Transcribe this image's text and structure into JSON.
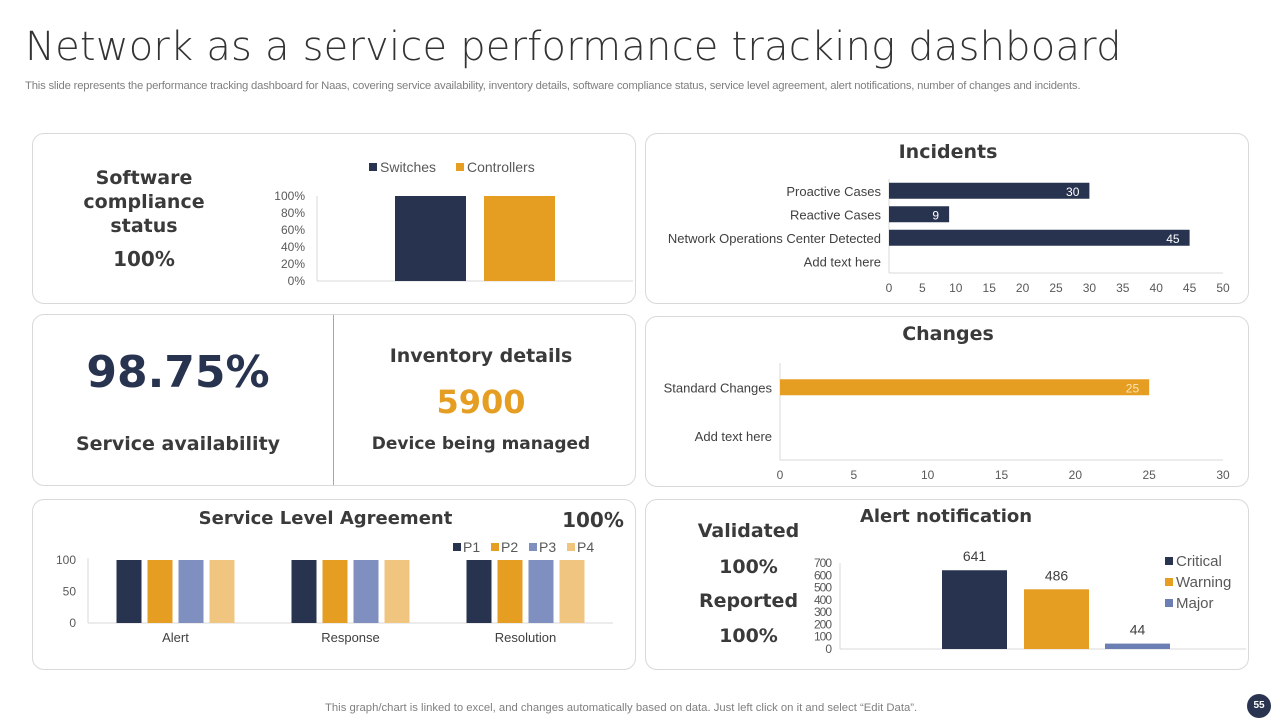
{
  "header": {
    "title": "Network as a service performance tracking dashboard",
    "subtitle": "This slide represents the performance tracking dashboard for Naas, covering service availability, inventory details, software compliance status, service level agreement, alert notifications, number of changes and incidents."
  },
  "colors": {
    "navy": "#283350",
    "gold": "#E59E22",
    "periwinkle": "#7F8FC0",
    "sand": "#F0C57F",
    "major": "#6B7FB5"
  },
  "software_compliance": {
    "title_line1": "Software compliance",
    "title_line2": "status",
    "value": "100%"
  },
  "service_availability": {
    "value": "98.75%",
    "label": "Service availability"
  },
  "inventory": {
    "title": "Inventory details",
    "value": "5900",
    "label": "Device being managed"
  },
  "sla": {
    "title": "Service Level Agreement",
    "value": "100%"
  },
  "alert": {
    "title": "Alert notification",
    "validated_label": "Validated",
    "validated_value": "100%",
    "reported_label": "Reported",
    "reported_value": "100%"
  },
  "incidents": {
    "title": "Incidents"
  },
  "changes": {
    "title": "Changes"
  },
  "footer": {
    "note": "This graph/chart is linked to excel,  and changes automatically based on data. Just left click on it and select “Edit Data”.",
    "page_number": "55"
  },
  "chart_data": [
    {
      "id": "compliance",
      "type": "bar",
      "title": "",
      "categories": [
        ""
      ],
      "series": [
        {
          "name": "Switches",
          "values": [
            100
          ]
        },
        {
          "name": "Controllers",
          "values": [
            100
          ]
        }
      ],
      "yticks": [
        "0%",
        "20%",
        "40%",
        "60%",
        "80%",
        "100%"
      ],
      "ylim": [
        0,
        100
      ],
      "legend": "top"
    },
    {
      "id": "incidents",
      "type": "bar",
      "orientation": "horizontal",
      "title": "Incidents",
      "categories": [
        "Proactive Cases",
        "Reactive Cases",
        "Network Operations Center Detected",
        "Add text here"
      ],
      "values": [
        30,
        9,
        45,
        null
      ],
      "data_labels": [
        "30",
        "9",
        "45",
        ""
      ],
      "xticks": [
        "0",
        "5",
        "10",
        "15",
        "20",
        "25",
        "30",
        "35",
        "40",
        "45",
        "50"
      ],
      "xlim": [
        0,
        50
      ]
    },
    {
      "id": "changes",
      "type": "bar",
      "orientation": "horizontal",
      "title": "Changes",
      "categories": [
        "Standard Changes",
        "Add text here"
      ],
      "values": [
        25,
        null
      ],
      "data_labels": [
        "25",
        ""
      ],
      "xticks": [
        "0",
        "5",
        "10",
        "15",
        "20",
        "25",
        "30"
      ],
      "xlim": [
        0,
        30
      ]
    },
    {
      "id": "sla",
      "type": "bar",
      "title": "Service Level Agreement",
      "categories": [
        "Alert",
        "Response",
        "Resolution"
      ],
      "series": [
        {
          "name": "P1",
          "values": [
            100,
            100,
            100
          ]
        },
        {
          "name": "P2",
          "values": [
            100,
            100,
            100
          ]
        },
        {
          "name": "P3",
          "values": [
            100,
            100,
            100
          ]
        },
        {
          "name": "P4",
          "values": [
            100,
            100,
            100
          ]
        }
      ],
      "yticks": [
        "0",
        "50",
        "100"
      ],
      "ylim": [
        0,
        100
      ],
      "legend": "top-right"
    },
    {
      "id": "alerts",
      "type": "bar",
      "title": "Alert notification",
      "categories": [
        ""
      ],
      "series": [
        {
          "name": "Critical",
          "values": [
            641
          ]
        },
        {
          "name": "Warning",
          "values": [
            486
          ]
        },
        {
          "name": "Major",
          "values": [
            44
          ]
        }
      ],
      "data_labels": [
        "641",
        "486",
        "44"
      ],
      "yticks": [
        "0",
        "100",
        "200",
        "300",
        "400",
        "500",
        "600",
        "700"
      ],
      "ylim": [
        0,
        700
      ],
      "legend": "right"
    }
  ]
}
